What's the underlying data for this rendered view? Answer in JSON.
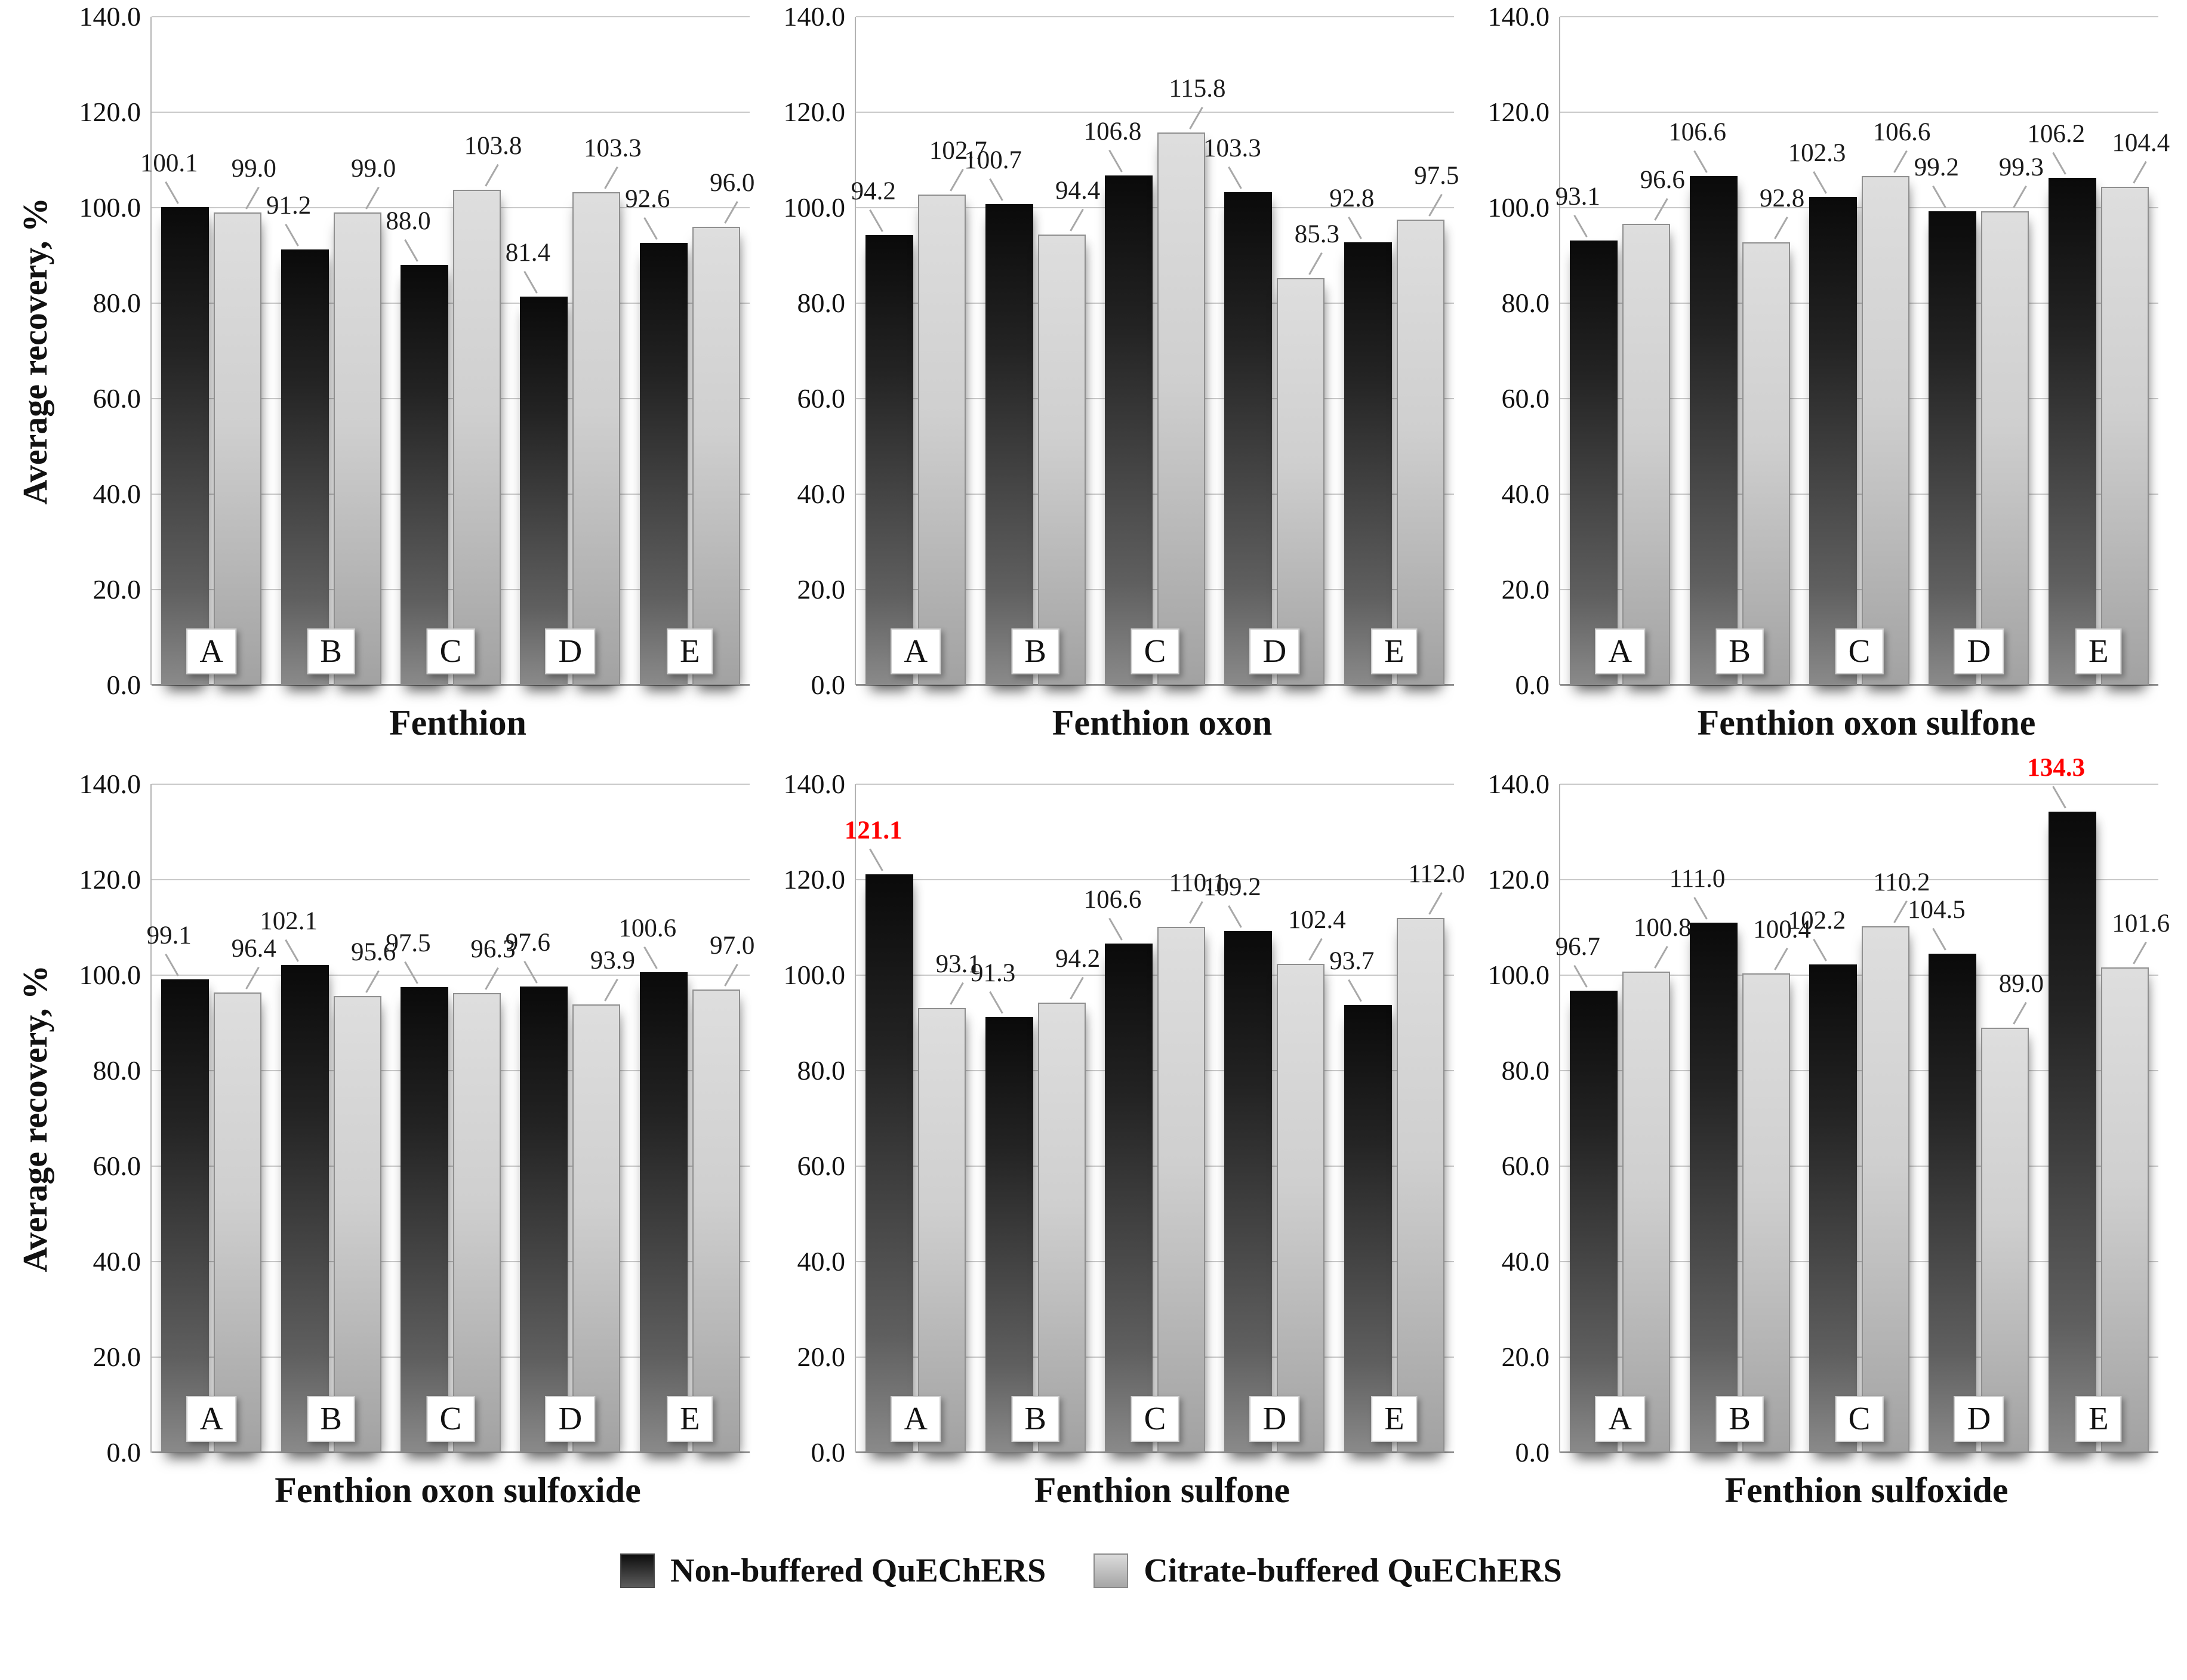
{
  "figure": {
    "ylabel": "Average recovery, %",
    "legend": [
      {
        "label": "Non-buffered QuEChERS",
        "color": "#1a1a1a"
      },
      {
        "label": "Citrate-buffered QuEChERS",
        "color": "#c9c9c9"
      }
    ],
    "highlight_color": "#ff0000"
  },
  "chart_data": [
    {
      "type": "bar",
      "title": "Fenthion",
      "ylabel": "Average recovery, %",
      "ylim": [
        0,
        140
      ],
      "ytick_step": 20,
      "grid": true,
      "categories": [
        "A",
        "B",
        "C",
        "D",
        "E"
      ],
      "series": [
        {
          "name": "Non-buffered QuEChERS",
          "values": [
            100.1,
            91.2,
            88.0,
            81.4,
            92.6
          ]
        },
        {
          "name": "Citrate-buffered QuEChERS",
          "values": [
            99.0,
            99.0,
            103.8,
            103.3,
            96.0
          ]
        }
      ],
      "highlighted_labels": []
    },
    {
      "type": "bar",
      "title": "Fenthion oxon",
      "ylim": [
        0,
        140
      ],
      "ytick_step": 20,
      "grid": true,
      "categories": [
        "A",
        "B",
        "C",
        "D",
        "E"
      ],
      "series": [
        {
          "name": "Non-buffered QuEChERS",
          "values": [
            94.2,
            100.7,
            106.8,
            103.3,
            92.8
          ]
        },
        {
          "name": "Citrate-buffered QuEChERS",
          "values": [
            102.7,
            94.4,
            115.8,
            85.3,
            97.5
          ]
        }
      ],
      "highlighted_labels": []
    },
    {
      "type": "bar",
      "title": "Fenthion oxon sulfone",
      "ylim": [
        0,
        140
      ],
      "ytick_step": 20,
      "grid": true,
      "categories": [
        "A",
        "B",
        "C",
        "D",
        "E"
      ],
      "series": [
        {
          "name": "Non-buffered QuEChERS",
          "values": [
            93.1,
            106.6,
            102.3,
            99.2,
            106.2
          ]
        },
        {
          "name": "Citrate-buffered QuEChERS",
          "values": [
            96.6,
            92.8,
            106.6,
            99.3,
            104.4
          ]
        }
      ],
      "highlighted_labels": []
    },
    {
      "type": "bar",
      "title": "Fenthion oxon sulfoxide",
      "ylabel": "Average recovery, %",
      "ylim": [
        0,
        140
      ],
      "ytick_step": 20,
      "grid": true,
      "categories": [
        "A",
        "B",
        "C",
        "D",
        "E"
      ],
      "series": [
        {
          "name": "Non-buffered QuEChERS",
          "values": [
            99.1,
            102.1,
            97.5,
            97.6,
            100.6
          ]
        },
        {
          "name": "Citrate-buffered QuEChERS",
          "values": [
            96.4,
            95.6,
            96.3,
            93.9,
            97.0
          ]
        }
      ],
      "highlighted_labels": []
    },
    {
      "type": "bar",
      "title": "Fenthion sulfone",
      "ylim": [
        0,
        140
      ],
      "ytick_step": 20,
      "grid": true,
      "categories": [
        "A",
        "B",
        "C",
        "D",
        "E"
      ],
      "series": [
        {
          "name": "Non-buffered QuEChERS",
          "values": [
            121.1,
            91.3,
            106.6,
            109.2,
            93.7
          ]
        },
        {
          "name": "Citrate-buffered QuEChERS",
          "values": [
            93.1,
            94.2,
            110.1,
            102.4,
            112.0
          ]
        }
      ],
      "highlighted_labels": [
        {
          "series": 0,
          "index": 0
        }
      ]
    },
    {
      "type": "bar",
      "title": "Fenthion sulfoxide",
      "ylim": [
        0,
        140
      ],
      "ytick_step": 20,
      "grid": true,
      "categories": [
        "A",
        "B",
        "C",
        "D",
        "E"
      ],
      "series": [
        {
          "name": "Non-buffered QuEChERS",
          "values": [
            96.7,
            111.0,
            102.2,
            104.5,
            134.3
          ]
        },
        {
          "name": "Citrate-buffered QuEChERS",
          "values": [
            100.8,
            100.4,
            110.2,
            89.0,
            101.6
          ]
        }
      ],
      "highlighted_labels": [
        {
          "series": 0,
          "index": 4
        }
      ]
    }
  ]
}
